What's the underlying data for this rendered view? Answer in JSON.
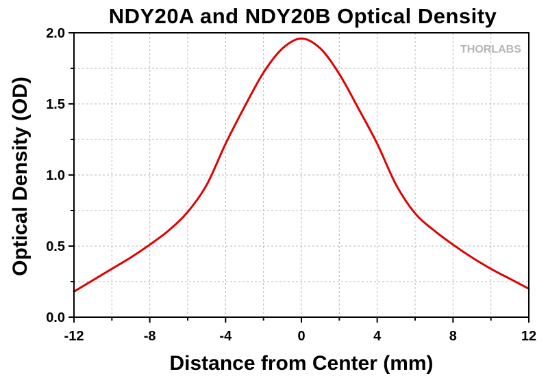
{
  "watermark_text": "THORLABS",
  "chart_data": {
    "type": "line",
    "title": "NDY20A and NDY20B Optical Density",
    "xlabel": "Distance from Center (mm)",
    "ylabel": "Optical Density (OD)",
    "xlim": [
      -12,
      12
    ],
    "ylim": [
      0.0,
      2.0
    ],
    "xticks": [
      "-12",
      "-8",
      "-4",
      "0",
      "4",
      "8",
      "12"
    ],
    "yticks": [
      "0.0",
      "0.5",
      "1.0",
      "1.5",
      "2.0"
    ],
    "grid": true,
    "line_color": "#e00000",
    "series": [
      {
        "x": [
          -12,
          -11,
          -10,
          -9,
          -8,
          -7,
          -6,
          -5,
          -4,
          -3,
          -2,
          -1,
          0,
          1,
          2,
          3,
          4,
          5,
          6,
          7,
          8,
          9,
          10,
          11,
          12
        ],
        "y": [
          0.18,
          0.26,
          0.34,
          0.42,
          0.51,
          0.61,
          0.74,
          0.93,
          1.22,
          1.48,
          1.72,
          1.89,
          1.96,
          1.89,
          1.71,
          1.47,
          1.22,
          0.93,
          0.73,
          0.61,
          0.51,
          0.42,
          0.34,
          0.27,
          0.2
        ]
      }
    ]
  }
}
